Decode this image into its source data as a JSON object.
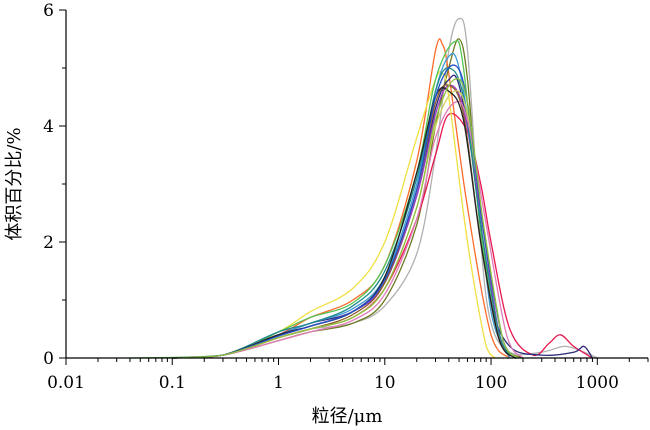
{
  "chart_data": {
    "type": "line",
    "xlabel": "粒径/μm",
    "ylabel": "体积百分比/%",
    "xscale": "log",
    "xlim": [
      0.01,
      3000
    ],
    "ylim": [
      0,
      6
    ],
    "xticks": [
      0.01,
      0.1,
      1,
      10,
      100,
      1000
    ],
    "xtick_labels": [
      "0.01",
      "0.1",
      "1",
      "10",
      "100",
      "1000"
    ],
    "yticks": [
      0,
      2,
      4,
      6
    ],
    "ytick_labels": [
      "0",
      "2",
      "4",
      "6"
    ],
    "grid": false,
    "legend": "none",
    "series": [
      {
        "color": "#b0b0b0",
        "points": [
          [
            0.1,
            0
          ],
          [
            0.3,
            0.05
          ],
          [
            1,
            0.35
          ],
          [
            2,
            0.5
          ],
          [
            5,
            0.6
          ],
          [
            10,
            0.9
          ],
          [
            20,
            1.8
          ],
          [
            30,
            3.5
          ],
          [
            40,
            5.3
          ],
          [
            50,
            5.85
          ],
          [
            60,
            5.3
          ],
          [
            80,
            2.0
          ],
          [
            100,
            0.6
          ],
          [
            150,
            0.1
          ],
          [
            300,
            0.1
          ],
          [
            500,
            0.2
          ],
          [
            800,
            0.08
          ],
          [
            1000,
            0
          ]
        ]
      },
      {
        "color": "#ff6a2a",
        "points": [
          [
            0.15,
            0
          ],
          [
            0.3,
            0.05
          ],
          [
            1,
            0.4
          ],
          [
            2,
            0.7
          ],
          [
            5,
            1.0
          ],
          [
            10,
            1.6
          ],
          [
            20,
            3.4
          ],
          [
            30,
            5.3
          ],
          [
            35,
            5.4
          ],
          [
            40,
            4.9
          ],
          [
            60,
            2.6
          ],
          [
            100,
            0.4
          ],
          [
            150,
            0
          ]
        ]
      },
      {
        "color": "#6b7a20",
        "points": [
          [
            0.1,
            0
          ],
          [
            0.3,
            0.05
          ],
          [
            1,
            0.3
          ],
          [
            2,
            0.45
          ],
          [
            5,
            0.6
          ],
          [
            10,
            1.0
          ],
          [
            20,
            2.3
          ],
          [
            30,
            4.0
          ],
          [
            40,
            5.0
          ],
          [
            50,
            5.5
          ],
          [
            60,
            4.8
          ],
          [
            80,
            2.2
          ],
          [
            120,
            0.3
          ],
          [
            200,
            0
          ]
        ]
      },
      {
        "color": "#e8174f",
        "points": [
          [
            0.1,
            0
          ],
          [
            0.3,
            0.05
          ],
          [
            1,
            0.35
          ],
          [
            2,
            0.5
          ],
          [
            5,
            0.7
          ],
          [
            10,
            1.2
          ],
          [
            20,
            2.4
          ],
          [
            30,
            3.5
          ],
          [
            40,
            4.2
          ],
          [
            60,
            3.9
          ],
          [
            80,
            3.0
          ],
          [
            100,
            2.0
          ],
          [
            150,
            0.5
          ],
          [
            250,
            0.05
          ],
          [
            350,
            0.25
          ],
          [
            450,
            0.4
          ],
          [
            600,
            0.2
          ],
          [
            900,
            0
          ]
        ]
      },
      {
        "color": "#f0e040",
        "points": [
          [
            0.05,
            0
          ],
          [
            0.3,
            0.05
          ],
          [
            1,
            0.45
          ],
          [
            2,
            0.8
          ],
          [
            5,
            1.2
          ],
          [
            10,
            2.0
          ],
          [
            20,
            3.8
          ],
          [
            30,
            4.8
          ],
          [
            35,
            4.9
          ],
          [
            40,
            4.5
          ],
          [
            60,
            2.0
          ],
          [
            90,
            0.2
          ],
          [
            110,
            0
          ]
        ]
      },
      {
        "color": "#2a2a7a",
        "points": [
          [
            0.1,
            0
          ],
          [
            0.3,
            0.05
          ],
          [
            1,
            0.4
          ],
          [
            2,
            0.6
          ],
          [
            5,
            0.8
          ],
          [
            10,
            1.3
          ],
          [
            20,
            2.8
          ],
          [
            30,
            4.3
          ],
          [
            40,
            4.8
          ],
          [
            50,
            4.7
          ],
          [
            70,
            3.2
          ],
          [
            100,
            1.0
          ],
          [
            150,
            0.2
          ],
          [
            300,
            0.05
          ],
          [
            600,
            0.1
          ],
          [
            750,
            0.2
          ],
          [
            900,
            0
          ]
        ]
      },
      {
        "color": "#3d9ad6",
        "points": [
          [
            0.1,
            0
          ],
          [
            0.3,
            0.05
          ],
          [
            1,
            0.4
          ],
          [
            2,
            0.6
          ],
          [
            5,
            0.85
          ],
          [
            10,
            1.4
          ],
          [
            20,
            3.0
          ],
          [
            30,
            4.6
          ],
          [
            40,
            5.2
          ],
          [
            50,
            5.0
          ],
          [
            70,
            3.3
          ],
          [
            100,
            0.8
          ],
          [
            150,
            0
          ]
        ]
      },
      {
        "color": "#55c455",
        "points": [
          [
            0.04,
            0
          ],
          [
            0.3,
            0.05
          ],
          [
            1,
            0.45
          ],
          [
            2,
            0.7
          ],
          [
            5,
            0.95
          ],
          [
            10,
            1.6
          ],
          [
            20,
            3.2
          ],
          [
            30,
            4.8
          ],
          [
            45,
            5.45
          ],
          [
            55,
            5.0
          ],
          [
            80,
            2.2
          ],
          [
            120,
            0.3
          ],
          [
            180,
            0
          ]
        ]
      },
      {
        "color": "#9a3ac8",
        "points": [
          [
            0.1,
            0
          ],
          [
            0.3,
            0.05
          ],
          [
            1,
            0.4
          ],
          [
            2,
            0.55
          ],
          [
            5,
            0.8
          ],
          [
            10,
            1.3
          ],
          [
            20,
            2.8
          ],
          [
            30,
            4.2
          ],
          [
            40,
            4.7
          ],
          [
            55,
            4.3
          ],
          [
            80,
            2.5
          ],
          [
            120,
            0.4
          ],
          [
            170,
            0
          ]
        ]
      },
      {
        "color": "#8c5a2a",
        "points": [
          [
            0.1,
            0
          ],
          [
            0.3,
            0.05
          ],
          [
            1,
            0.35
          ],
          [
            2,
            0.5
          ],
          [
            5,
            0.75
          ],
          [
            10,
            1.3
          ],
          [
            20,
            2.9
          ],
          [
            30,
            4.4
          ],
          [
            40,
            4.7
          ],
          [
            55,
            4.2
          ],
          [
            80,
            2.0
          ],
          [
            120,
            0.3
          ],
          [
            170,
            0
          ]
        ]
      },
      {
        "color": "#1e8a8a",
        "points": [
          [
            0.1,
            0
          ],
          [
            0.3,
            0.05
          ],
          [
            1,
            0.45
          ],
          [
            2,
            0.6
          ],
          [
            5,
            0.9
          ],
          [
            10,
            1.5
          ],
          [
            20,
            3.1
          ],
          [
            30,
            4.6
          ],
          [
            40,
            5.0
          ],
          [
            55,
            4.5
          ],
          [
            80,
            2.3
          ],
          [
            120,
            0.4
          ],
          [
            170,
            0
          ]
        ]
      },
      {
        "color": "#d0d060",
        "points": [
          [
            0.1,
            0
          ],
          [
            0.3,
            0.05
          ],
          [
            1,
            0.35
          ],
          [
            2,
            0.5
          ],
          [
            5,
            0.7
          ],
          [
            10,
            1.2
          ],
          [
            20,
            2.6
          ],
          [
            30,
            4.0
          ],
          [
            45,
            4.6
          ],
          [
            60,
            4.2
          ],
          [
            85,
            2.3
          ],
          [
            130,
            0.3
          ],
          [
            180,
            0
          ]
        ]
      },
      {
        "color": "#e07ab8",
        "points": [
          [
            0.1,
            0
          ],
          [
            0.3,
            0.05
          ],
          [
            1,
            0.3
          ],
          [
            2,
            0.45
          ],
          [
            5,
            0.65
          ],
          [
            10,
            1.1
          ],
          [
            20,
            2.4
          ],
          [
            30,
            3.8
          ],
          [
            45,
            4.4
          ],
          [
            60,
            4.1
          ],
          [
            90,
            2.3
          ],
          [
            140,
            0.4
          ],
          [
            200,
            0
          ]
        ]
      },
      {
        "color": "#222222",
        "points": [
          [
            0.1,
            0
          ],
          [
            0.3,
            0.05
          ],
          [
            1,
            0.4
          ],
          [
            2,
            0.55
          ],
          [
            5,
            0.8
          ],
          [
            10,
            1.4
          ],
          [
            20,
            3.2
          ],
          [
            30,
            4.5
          ],
          [
            40,
            4.6
          ],
          [
            55,
            4.1
          ],
          [
            80,
            2.0
          ],
          [
            120,
            0.3
          ],
          [
            170,
            0
          ]
        ]
      },
      {
        "color": "#1f4fc8",
        "points": [
          [
            0.1,
            0
          ],
          [
            0.3,
            0.05
          ],
          [
            1,
            0.38
          ],
          [
            2,
            0.55
          ],
          [
            5,
            0.8
          ],
          [
            10,
            1.35
          ],
          [
            20,
            2.9
          ],
          [
            30,
            4.5
          ],
          [
            45,
            5.05
          ],
          [
            60,
            4.4
          ],
          [
            85,
            2.2
          ],
          [
            130,
            0.3
          ],
          [
            180,
            0
          ]
        ]
      },
      {
        "color": "#8fbf3f",
        "points": [
          [
            0.1,
            0
          ],
          [
            0.3,
            0.05
          ],
          [
            1,
            0.35
          ],
          [
            2,
            0.5
          ],
          [
            5,
            0.7
          ],
          [
            10,
            1.2
          ],
          [
            20,
            2.6
          ],
          [
            30,
            4.1
          ],
          [
            45,
            4.8
          ],
          [
            60,
            4.4
          ],
          [
            85,
            2.3
          ],
          [
            130,
            0.3
          ],
          [
            180,
            0
          ]
        ]
      }
    ]
  }
}
